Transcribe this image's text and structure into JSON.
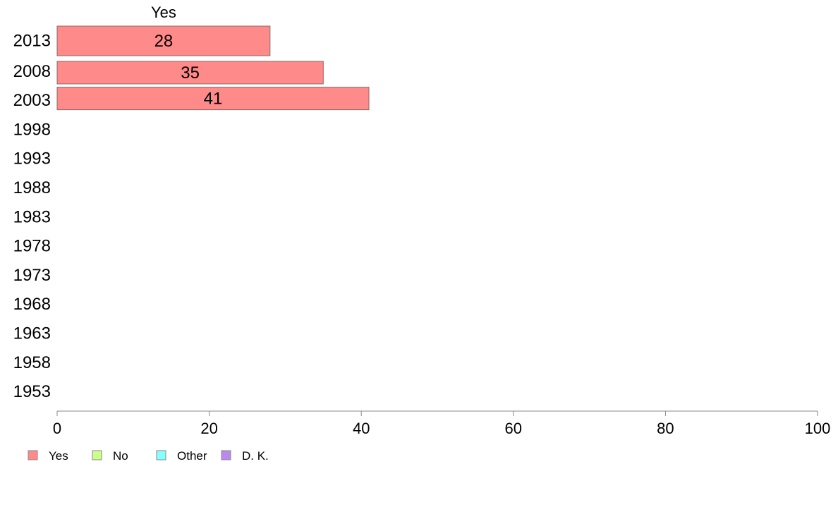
{
  "chart_data": {
    "type": "bar",
    "orientation": "horizontal",
    "stacked": true,
    "column_header": "Yes",
    "categories": [
      "2013",
      "2008",
      "2003",
      "1998",
      "1993",
      "1988",
      "1983",
      "1978",
      "1973",
      "1968",
      "1963",
      "1958",
      "1953"
    ],
    "series": [
      {
        "name": "Yes",
        "color": "#ff8a8a",
        "values": [
          28,
          35,
          41,
          null,
          null,
          null,
          null,
          null,
          null,
          null,
          null,
          null,
          null
        ]
      },
      {
        "name": "No",
        "color": "#ccff88",
        "values": [
          null,
          null,
          null,
          null,
          null,
          null,
          null,
          null,
          null,
          null,
          null,
          null,
          null
        ]
      },
      {
        "name": "Other",
        "color": "#88ffff",
        "values": [
          null,
          null,
          null,
          null,
          null,
          null,
          null,
          null,
          null,
          null,
          null,
          null,
          null
        ]
      },
      {
        "name": "D. K.",
        "color": "#bb88ee",
        "values": [
          null,
          null,
          null,
          null,
          null,
          null,
          null,
          null,
          null,
          null,
          null,
          null,
          null
        ]
      }
    ],
    "xlim": [
      0,
      100
    ],
    "xticks": [
      0,
      20,
      40,
      60,
      80,
      100
    ],
    "grid": false,
    "legend_position": "bottom-left"
  }
}
